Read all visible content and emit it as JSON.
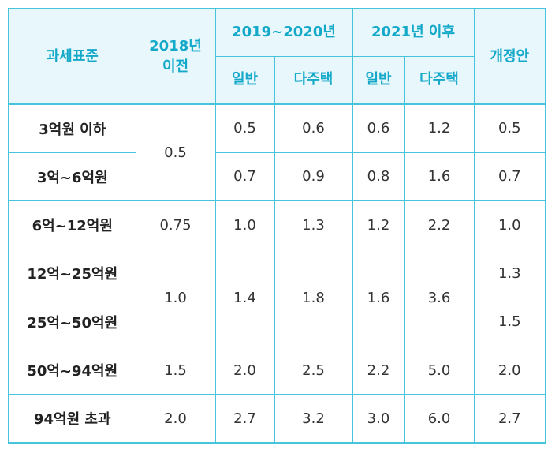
{
  "headers": {
    "bracket": "과세표준",
    "y2018_line1": "2018년",
    "y2018_line2": "이전",
    "y2019": "2019~2020년",
    "y2021": "2021년 이후",
    "proposal": "개정안",
    "general": "일반",
    "multi": "다주택"
  },
  "rows": [
    {
      "bracket": "3억원 이하",
      "y2018": "0.5",
      "y2019_general": "0.5",
      "y2019_multi": "0.6",
      "y2021_general": "0.6",
      "y2021_multi": "1.2",
      "proposal": "0.5"
    },
    {
      "bracket": "3억~6억원",
      "y2019_general": "0.7",
      "y2019_multi": "0.9",
      "y2021_general": "0.8",
      "y2021_multi": "1.6",
      "proposal": "0.7"
    },
    {
      "bracket": "6억~12억원",
      "y2018": "0.75",
      "y2019_general": "1.0",
      "y2019_multi": "1.3",
      "y2021_general": "1.2",
      "y2021_multi": "2.2",
      "proposal": "1.0"
    },
    {
      "bracket": "12억~25억원",
      "y2018": "1.0",
      "y2019_general": "1.4",
      "y2019_multi": "1.8",
      "y2021_general": "1.6",
      "y2021_multi": "3.6",
      "proposal": "1.3"
    },
    {
      "bracket": "25억~50억원",
      "proposal": "1.5"
    },
    {
      "bracket": "50억~94억원",
      "y2018": "1.5",
      "y2019_general": "2.0",
      "y2019_multi": "2.5",
      "y2021_general": "2.2",
      "y2021_multi": "5.0",
      "proposal": "2.0"
    },
    {
      "bracket": "94억원 초과",
      "y2018": "2.0",
      "y2019_general": "2.7",
      "y2019_multi": "3.2",
      "y2021_general": "3.0",
      "y2021_multi": "6.0",
      "proposal": "2.7"
    }
  ]
}
